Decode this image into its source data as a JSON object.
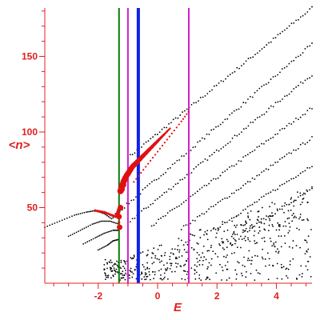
{
  "chart_data": {
    "type": "scatter",
    "title": "",
    "xlabel": "E",
    "ylabel": "<n>",
    "xlim": [
      -3.8,
      5.2
    ],
    "ylim": [
      0,
      182
    ],
    "x_ticks": [
      -2,
      0,
      2,
      4
    ],
    "x_tick_labels": [
      "-2",
      "0",
      "2",
      "4"
    ],
    "y_ticks": [
      50,
      100,
      150
    ],
    "y_tick_labels": [
      "50",
      "100",
      "150"
    ],
    "grid": false,
    "legend": "none",
    "colors": {
      "axis": "#e02020",
      "points": "#000000",
      "highlight": "#e01010",
      "green_line": "#0a7a0a",
      "magenta_line": "#d020d0",
      "blue_line": "#1020ee"
    },
    "vertical_lines": [
      {
        "x": -1.3,
        "color": "#0a7a0a",
        "width": 2
      },
      {
        "x": -1.0,
        "color": "#d020d0",
        "width": 2
      },
      {
        "x": -0.65,
        "color": "#1020ee",
        "width": 4
      },
      {
        "x": 1.05,
        "color": "#d020d0",
        "width": 2
      }
    ],
    "bands": [
      {
        "x_start": -1.0,
        "y_start": 83,
        "x_end": 5.2,
        "y_end": 182
      },
      {
        "x_start": -1.5,
        "y_start": 44,
        "x_end": 5.2,
        "y_end": 158
      },
      {
        "x_start": -1.0,
        "y_start": 40,
        "x_end": 5.2,
        "y_end": 138
      },
      {
        "x_start": -0.2,
        "y_start": 38,
        "x_end": 5.2,
        "y_end": 116
      },
      {
        "x_start": 0.8,
        "y_start": 36,
        "x_end": 5.2,
        "y_end": 96
      },
      {
        "x_start": 1.8,
        "y_start": 34,
        "x_end": 5.2,
        "y_end": 78
      },
      {
        "x_start": 2.8,
        "y_start": 32,
        "x_end": 5.2,
        "y_end": 62
      }
    ],
    "low_branches": [
      {
        "x": [
          -3.8,
          -3.3,
          -2.8,
          -2.4,
          -2.1,
          -1.8,
          -1.5
        ],
        "y": [
          37,
          41,
          45,
          47,
          48,
          46,
          42
        ]
      },
      {
        "x": [
          -3.0,
          -2.6,
          -2.2,
          -1.9,
          -1.6,
          -1.3
        ],
        "y": [
          31,
          35,
          39,
          41,
          41,
          39
        ]
      },
      {
        "x": [
          -2.5,
          -2.1,
          -1.8,
          -1.5,
          -1.3
        ],
        "y": [
          26,
          30,
          33,
          35,
          35
        ]
      },
      {
        "x": [
          -2.0,
          -1.7,
          -1.5,
          -1.3
        ],
        "y": [
          22,
          25,
          28,
          29
        ]
      }
    ],
    "red_curve": {
      "x": [
        -1.25,
        -1.15,
        -1.05,
        -0.95,
        -0.85,
        -0.75,
        -0.65,
        -0.55,
        -0.45,
        -0.35,
        -0.25,
        -0.15,
        -0.05,
        0.05,
        0.15,
        0.25,
        0.35,
        0.45
      ],
      "y": [
        61,
        67,
        71,
        74,
        77,
        79,
        81,
        83,
        85,
        87,
        89,
        91,
        93,
        95,
        97,
        99,
        101,
        103
      ]
    },
    "red_thin": {
      "x": [
        -0.8,
        -0.4,
        0.0,
        0.4,
        0.8,
        1.1
      ],
      "y": [
        67,
        77,
        87,
        97,
        107,
        115
      ]
    },
    "red_low": {
      "x": [
        -2.1,
        -1.8,
        -1.55,
        -1.4,
        -1.35,
        -1.3,
        -1.3
      ],
      "y": [
        48,
        47,
        45,
        44,
        47,
        50,
        37
      ]
    },
    "red_big": {
      "x": [
        -1.3,
        -1.28,
        -1.25,
        -1.2,
        -1.15
      ],
      "y": [
        44,
        37,
        50,
        62,
        65
      ]
    }
  }
}
